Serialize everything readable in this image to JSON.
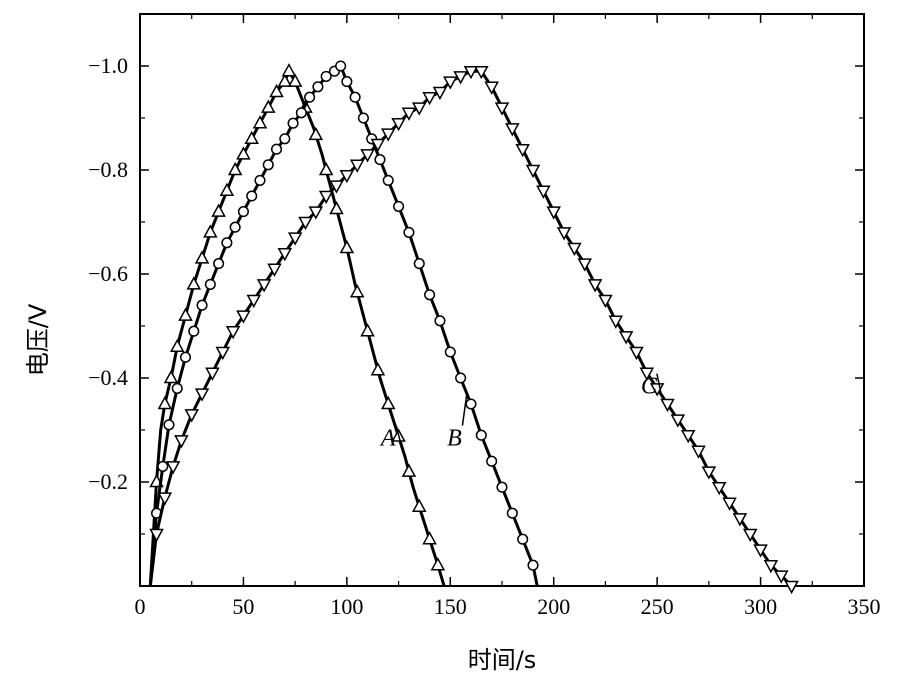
{
  "chart_data": {
    "type": "line",
    "xlabel": "时间/s",
    "ylabel": "电压/V",
    "xlim": [
      0,
      350
    ],
    "ylim": [
      0,
      -1.1
    ],
    "x_ticks": [
      0,
      50,
      100,
      150,
      200,
      250,
      300,
      350
    ],
    "x_tick_labels": [
      "0",
      "50",
      "100",
      "150",
      "200",
      "250",
      "300",
      "350"
    ],
    "y_ticks": [
      -0.2,
      -0.4,
      -0.6,
      -0.8,
      -1.0
    ],
    "y_tick_labels": [
      "−0.2",
      "−0.4",
      "−0.6",
      "−0.8",
      "−1.0"
    ],
    "grid": false,
    "series": [
      {
        "name": "A",
        "marker": "triangle-up",
        "x": [
          5,
          8,
          10,
          12,
          15,
          18,
          22,
          26,
          30,
          34,
          38,
          42,
          46,
          50,
          54,
          58,
          62,
          66,
          70,
          72,
          75,
          79,
          84,
          88,
          92,
          96,
          100,
          104,
          108,
          112,
          116,
          120,
          124,
          128,
          132,
          136,
          140,
          144,
          147
        ],
        "y": [
          0.0,
          -0.2,
          -0.3,
          -0.35,
          -0.4,
          -0.46,
          -0.52,
          -0.58,
          -0.63,
          -0.68,
          -0.72,
          -0.76,
          -0.8,
          -0.83,
          -0.86,
          -0.89,
          -0.92,
          -0.95,
          -0.97,
          -0.99,
          -0.97,
          -0.93,
          -0.88,
          -0.83,
          -0.77,
          -0.71,
          -0.65,
          -0.58,
          -0.52,
          -0.46,
          -0.4,
          -0.35,
          -0.3,
          -0.25,
          -0.19,
          -0.14,
          -0.09,
          -0.04,
          0.0
        ],
        "marker_x": [
          8,
          12,
          15,
          18,
          22,
          26,
          30,
          34,
          38,
          42,
          46,
          50,
          54,
          58,
          62,
          66,
          70,
          72,
          75,
          80,
          85,
          90,
          95,
          100,
          105,
          110,
          115,
          120,
          125,
          130,
          135,
          140,
          144
        ],
        "label_x": 120,
        "label_y": -0.27
      },
      {
        "name": "B",
        "marker": "circle",
        "x": [
          5,
          8,
          11,
          14,
          18,
          22,
          26,
          30,
          34,
          38,
          42,
          46,
          50,
          54,
          58,
          62,
          66,
          70,
          74,
          78,
          82,
          86,
          90,
          94,
          97,
          100,
          104,
          108,
          112,
          116,
          120,
          125,
          130,
          135,
          140,
          145,
          150,
          155,
          160,
          165,
          170,
          175,
          180,
          185,
          190,
          192
        ],
        "y": [
          0.0,
          -0.14,
          -0.23,
          -0.31,
          -0.38,
          -0.44,
          -0.49,
          -0.54,
          -0.58,
          -0.62,
          -0.66,
          -0.69,
          -0.72,
          -0.75,
          -0.78,
          -0.81,
          -0.84,
          -0.86,
          -0.89,
          -0.91,
          -0.94,
          -0.96,
          -0.98,
          -0.99,
          -1.0,
          -0.97,
          -0.94,
          -0.9,
          -0.86,
          -0.82,
          -0.78,
          -0.73,
          -0.68,
          -0.62,
          -0.56,
          -0.51,
          -0.45,
          -0.4,
          -0.35,
          -0.29,
          -0.24,
          -0.19,
          -0.14,
          -0.09,
          -0.04,
          0.0
        ],
        "marker_x": [
          8,
          11,
          14,
          18,
          22,
          26,
          30,
          34,
          38,
          42,
          46,
          50,
          54,
          58,
          62,
          66,
          70,
          74,
          78,
          82,
          86,
          90,
          94,
          97,
          100,
          104,
          108,
          112,
          116,
          120,
          125,
          130,
          135,
          140,
          145,
          150,
          155,
          160,
          165,
          170,
          175,
          180,
          185,
          190
        ],
        "label_x": 152,
        "label_y": -0.27
      },
      {
        "name": "C",
        "marker": "triangle-down",
        "x": [
          5,
          8,
          12,
          16,
          20,
          25,
          30,
          35,
          40,
          45,
          50,
          55,
          60,
          65,
          70,
          75,
          80,
          85,
          90,
          95,
          100,
          105,
          110,
          115,
          120,
          125,
          130,
          135,
          140,
          145,
          150,
          155,
          160,
          165,
          170,
          175,
          180,
          185,
          190,
          195,
          200,
          205,
          210,
          215,
          220,
          225,
          230,
          235,
          240,
          245,
          250,
          255,
          260,
          265,
          270,
          275,
          280,
          285,
          290,
          295,
          300,
          305,
          310,
          315
        ],
        "y": [
          0.0,
          -0.1,
          -0.17,
          -0.23,
          -0.28,
          -0.33,
          -0.37,
          -0.41,
          -0.45,
          -0.49,
          -0.52,
          -0.55,
          -0.58,
          -0.61,
          -0.64,
          -0.67,
          -0.7,
          -0.72,
          -0.75,
          -0.77,
          -0.79,
          -0.81,
          -0.83,
          -0.85,
          -0.87,
          -0.89,
          -0.91,
          -0.92,
          -0.94,
          -0.95,
          -0.97,
          -0.98,
          -0.99,
          -0.99,
          -0.96,
          -0.92,
          -0.88,
          -0.84,
          -0.8,
          -0.76,
          -0.72,
          -0.68,
          -0.65,
          -0.62,
          -0.58,
          -0.55,
          -0.51,
          -0.48,
          -0.45,
          -0.41,
          -0.38,
          -0.35,
          -0.32,
          -0.29,
          -0.26,
          -0.22,
          -0.19,
          -0.16,
          -0.13,
          -0.1,
          -0.07,
          -0.04,
          -0.02,
          0.0
        ],
        "marker_x": [
          8,
          12,
          16,
          20,
          25,
          30,
          35,
          40,
          45,
          50,
          55,
          60,
          65,
          70,
          75,
          80,
          85,
          90,
          95,
          100,
          105,
          110,
          115,
          120,
          125,
          130,
          135,
          140,
          145,
          150,
          155,
          160,
          165,
          170,
          175,
          180,
          185,
          190,
          195,
          200,
          205,
          210,
          215,
          220,
          225,
          230,
          235,
          240,
          245,
          250,
          255,
          260,
          265,
          270,
          275,
          280,
          285,
          290,
          295,
          300,
          305,
          310,
          315
        ],
        "label_x": 246,
        "label_y": -0.37
      }
    ]
  }
}
